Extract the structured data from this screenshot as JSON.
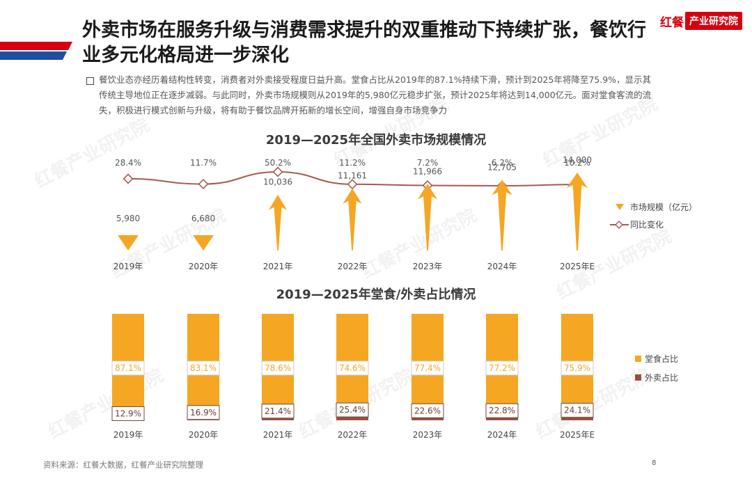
{
  "header": {
    "title": "外卖市场在服务升级与消费需求提升的双重推动下持续扩张，餐饮行业多元化格局进一步深化",
    "logo_mark": "红餐",
    "logo_text": "产业研究院"
  },
  "intro": "餐饮业态亦经历着结构性转变，消费者对外卖接受程度日益升高。堂食占比从2019年的87.1%持续下滑，预计到2025年将降至75.9%，显示其传统主导地位正在逐步减弱。与此同时，外卖市场规模则从2019年的5,980亿元稳步扩张，预计2025年将达到14,000亿元。面对堂食客流的流失，积极进行模式创新与升级，将有助于餐饮品牌开拓新的增长空间，增强自身市场竞争力",
  "colors": {
    "orange": "#F5A623",
    "brown_line": "#A9584F",
    "brown_bar": "#9C4F3C",
    "brand_red": "#D7000F"
  },
  "chart_data": [
    {
      "type": "bar",
      "title": "2019—2025年全国外卖市场规模情况",
      "categories": [
        "2019年",
        "2020年",
        "2021年",
        "2022年",
        "2023年",
        "2024年",
        "2025年E"
      ],
      "series": [
        {
          "name": "市场规模（亿元）",
          "values": [
            5980,
            6680,
            10036,
            11161,
            11966,
            12705,
            14000
          ],
          "labels": [
            "5,980",
            "6,680",
            "10,036",
            "11,161",
            "11,966",
            "12,705",
            "14,000"
          ]
        },
        {
          "name": "同比变化",
          "type": "line",
          "values": [
            28.4,
            11.7,
            50.2,
            11.2,
            7.2,
            6.2,
            10.2
          ],
          "labels": [
            "28.4%",
            "11.7%",
            "50.2%",
            "11.2%",
            "7.2%",
            "6.2%",
            "10.2%"
          ]
        }
      ],
      "legend": [
        "市场规模（亿元）",
        "同比变化"
      ],
      "legend_position": "right"
    },
    {
      "type": "bar",
      "stacked": true,
      "title": "2019—2025年堂食/外卖占比情况",
      "categories": [
        "2019年",
        "2020年",
        "2021年",
        "2022年",
        "2023年",
        "2024年",
        "2025年E"
      ],
      "series": [
        {
          "name": "堂食占比",
          "values": [
            87.1,
            83.1,
            78.6,
            74.6,
            77.4,
            77.2,
            75.9
          ],
          "labels": [
            "87.1%",
            "83.1%",
            "78.6%",
            "74.6%",
            "77.4%",
            "77.2%",
            "75.9%"
          ]
        },
        {
          "name": "外卖占比",
          "values": [
            12.9,
            16.9,
            21.4,
            25.4,
            22.6,
            22.8,
            24.1
          ],
          "labels": [
            "12.9%",
            "16.9%",
            "21.4%",
            "25.4%",
            "22.6%",
            "22.8%",
            "24.1%"
          ]
        }
      ],
      "legend": [
        "堂食占比",
        "外卖占比"
      ],
      "legend_position": "right",
      "ylim": [
        0,
        100
      ]
    }
  ],
  "source": "资料来源：红餐大数据，红餐产业研究院整理",
  "page_number": "8",
  "watermark": "红餐产业研究院"
}
